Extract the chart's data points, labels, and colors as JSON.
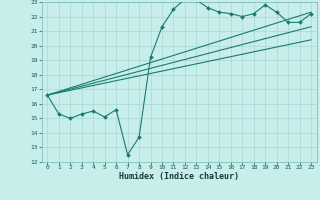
{
  "xlabel": "Humidex (Indice chaleur)",
  "bg_color": "#c8eeeb",
  "grid_color": "#a8d8d4",
  "line_color": "#1a7a6e",
  "xlim": [
    -0.5,
    23.5
  ],
  "ylim": [
    12,
    23
  ],
  "xticks": [
    0,
    1,
    2,
    3,
    4,
    5,
    6,
    7,
    8,
    9,
    10,
    11,
    12,
    13,
    14,
    15,
    16,
    17,
    18,
    19,
    20,
    21,
    22,
    23
  ],
  "yticks": [
    12,
    13,
    14,
    15,
    16,
    17,
    18,
    19,
    20,
    21,
    22,
    23
  ],
  "line1_x": [
    0,
    1,
    2,
    3,
    4,
    5,
    6,
    7,
    8,
    9,
    10,
    11,
    12,
    13,
    14,
    15,
    16,
    17,
    18,
    19,
    20,
    21,
    22,
    23
  ],
  "line1_y": [
    16.6,
    15.3,
    15.0,
    15.3,
    15.5,
    15.1,
    15.6,
    12.5,
    13.7,
    19.2,
    21.3,
    22.5,
    23.2,
    23.15,
    22.6,
    22.3,
    22.2,
    22.0,
    22.2,
    22.8,
    22.3,
    21.6,
    21.6,
    22.2
  ],
  "line2_x": [
    0,
    23
  ],
  "line2_y": [
    16.6,
    22.3
  ],
  "line3_x": [
    0,
    23
  ],
  "line3_y": [
    16.6,
    21.3
  ],
  "line4_x": [
    0,
    23
  ],
  "line4_y": [
    16.6,
    20.4
  ]
}
